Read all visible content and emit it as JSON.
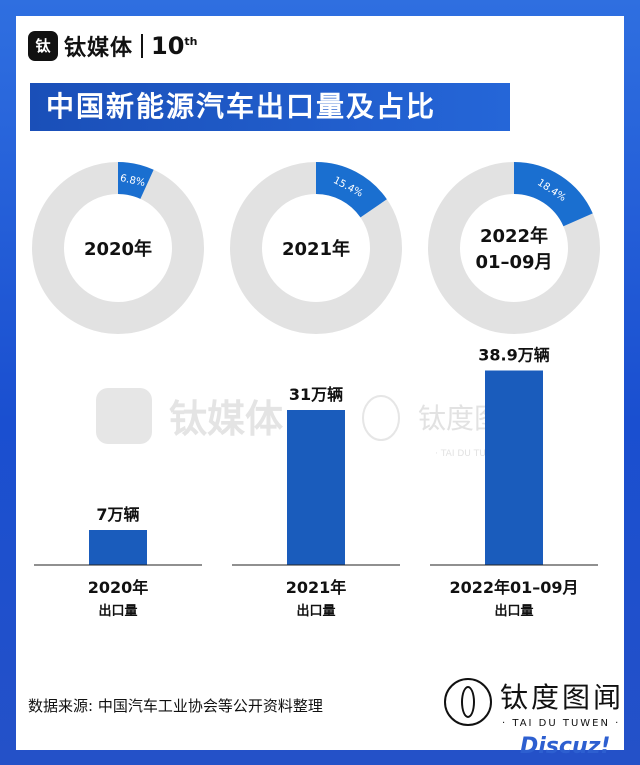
{
  "brand": {
    "logo_text": "钛",
    "name": "钛媒体",
    "anniversary": "10",
    "anniversary_suffix": "th"
  },
  "title": "中国新能源汽车出口量及占比",
  "watermarks": {
    "left": "钛媒体",
    "right": "钛度图闻",
    "right_sub": "· TAI DU TUWEN ·"
  },
  "chart_data": [
    {
      "type": "pie",
      "subtype": "donut",
      "slices": [
        {
          "label": "2020年",
          "value": 6.8,
          "display": "6.8%"
        },
        {
          "label": "2021年",
          "value": 15.4,
          "display": "15.4%"
        },
        {
          "label": "2022年 01–09月",
          "value": 18.4,
          "display": "18.4%"
        }
      ],
      "center_labels": [
        [
          "2020年"
        ],
        [
          "2021年"
        ],
        [
          "2022年",
          "01–09月"
        ]
      ],
      "colors": {
        "share": "#1a6fd0",
        "rest": "#e2e2e2"
      }
    },
    {
      "type": "bar",
      "categories": [
        "2020年",
        "2021年",
        "2022年01–09月"
      ],
      "values": [
        7,
        31,
        38.9
      ],
      "value_labels": [
        "7万辆",
        "31万辆",
        "38.9万辆"
      ],
      "unit": "万辆",
      "sublabel": "出口量",
      "color": "#1a5cbc"
    }
  ],
  "footer": {
    "source": "数据来源: 中国汽车工业协会等公开资料整理",
    "brand_name": "钛度图闻",
    "brand_sub": "· TAI DU TUWEN ·"
  },
  "forum_watermark": "Discuz!"
}
